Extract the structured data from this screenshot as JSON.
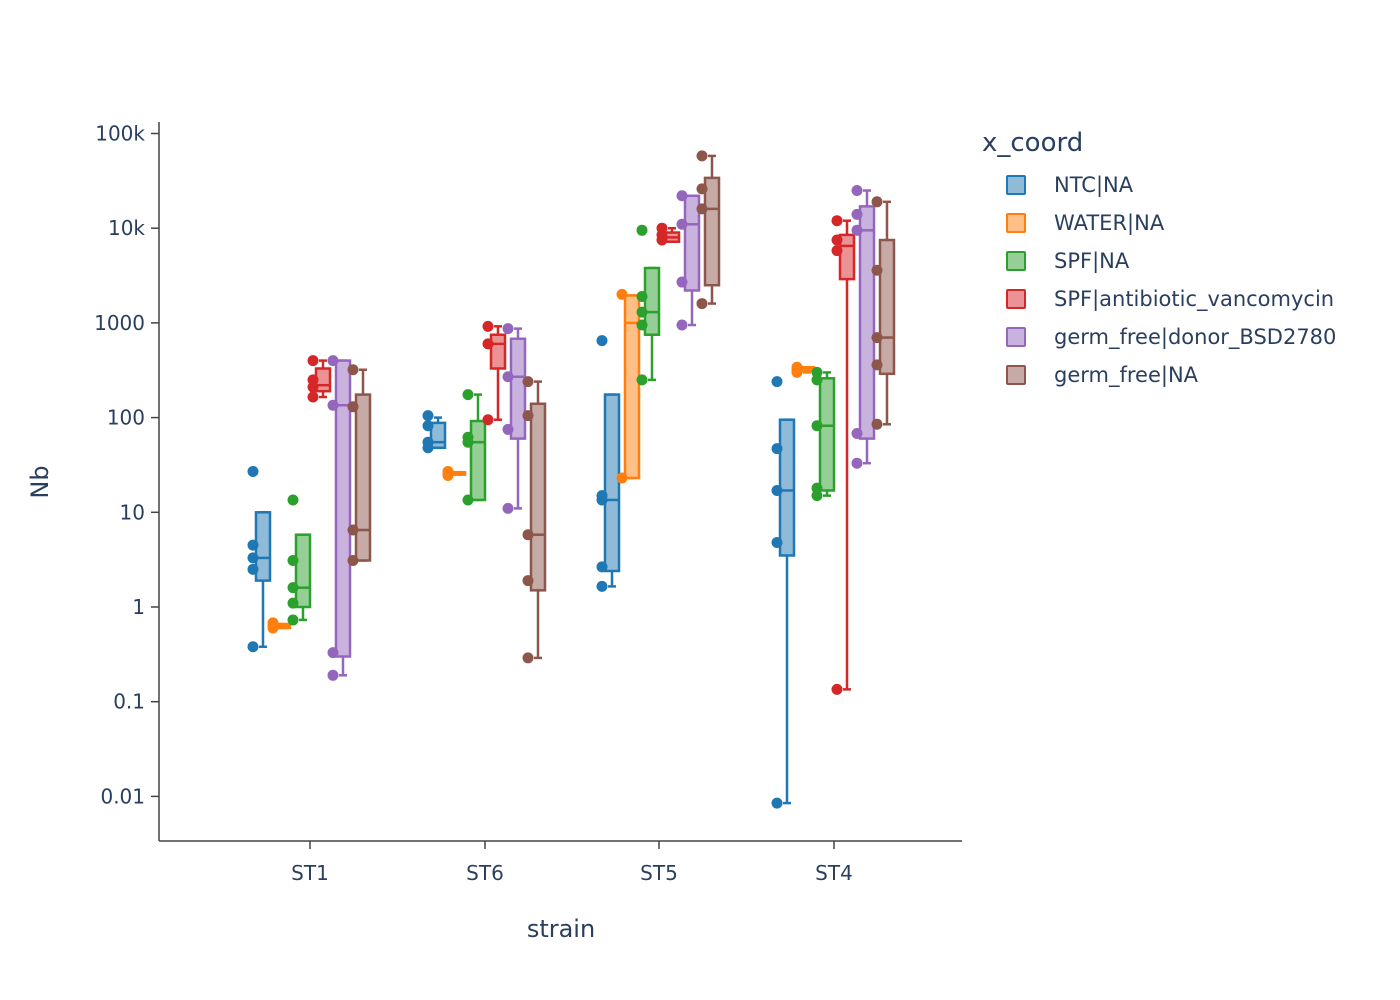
{
  "chart_data": {
    "type": "box",
    "xlabel": "strain",
    "ylabel": "Nb",
    "yscale": "log",
    "ylim": [
      0.0045,
      140000
    ],
    "y_ticks": [
      {
        "value": 0.01,
        "label": "0.01"
      },
      {
        "value": 0.1,
        "label": "0.1"
      },
      {
        "value": 1,
        "label": "1"
      },
      {
        "value": 10,
        "label": "10"
      },
      {
        "value": 100,
        "label": "100"
      },
      {
        "value": 1000,
        "label": "1000"
      },
      {
        "value": 10000,
        "label": "10k"
      },
      {
        "value": 100000,
        "label": "100k"
      }
    ],
    "categories": [
      "ST1",
      "ST6",
      "ST5",
      "ST4"
    ],
    "legend_title": "x_coord",
    "legend_position": "right",
    "series": [
      {
        "name": "NTC|NA",
        "color": "#1f77b4",
        "fill": "#8fbbd9",
        "boxes": [
          {
            "category": "ST1",
            "min": 0.38,
            "q1": 1.9,
            "median": 3.3,
            "q3": 10.0,
            "max": 10.0,
            "points": [
              0.38,
              2.5,
              3.3,
              4.5,
              27
            ]
          },
          {
            "category": "ST6",
            "min": 48,
            "q1": 48,
            "median": 55,
            "q3": 88,
            "max": 100,
            "points": [
              48,
              55,
              82,
              105
            ]
          },
          {
            "category": "ST5",
            "min": 1.65,
            "q1": 2.4,
            "median": 13.5,
            "q3": 175,
            "max": 175,
            "points": [
              1.65,
              2.65,
              13.5,
              15,
              650
            ]
          },
          {
            "category": "ST4",
            "min": 0.0085,
            "q1": 3.5,
            "median": 17,
            "q3": 95,
            "max": 95,
            "points": [
              0.0085,
              4.8,
              17,
              47,
              240
            ]
          }
        ]
      },
      {
        "name": "WATER|NA",
        "color": "#ff7f0e",
        "fill": "#ffbf86",
        "boxes": [
          {
            "category": "ST1",
            "min": 0.6,
            "q1": 0.6,
            "median": 0.63,
            "q3": 0.66,
            "max": 0.66,
            "points": [
              0.6,
              0.63,
              0.68
            ]
          },
          {
            "category": "ST6",
            "min": 25,
            "q1": 25,
            "median": 26,
            "q3": 26.5,
            "max": 26.5,
            "points": [
              24.5,
              26,
              27
            ]
          },
          {
            "category": "ST5",
            "min": 23,
            "q1": 23,
            "median": 1000,
            "q3": 1950,
            "max": 1950,
            "points": [
              23,
              2000
            ]
          },
          {
            "category": "ST4",
            "min": 300,
            "q1": 310,
            "median": 330,
            "q3": 340,
            "max": 340,
            "points": [
              300,
              320,
              340
            ]
          }
        ]
      },
      {
        "name": "SPF|NA",
        "color": "#2ca02c",
        "fill": "#95cf95",
        "boxes": [
          {
            "category": "ST1",
            "min": 0.73,
            "q1": 1.0,
            "median": 1.6,
            "q3": 5.8,
            "max": 5.8,
            "points": [
              0.73,
              1.1,
              1.6,
              3.1,
              13.5
            ]
          },
          {
            "category": "ST6",
            "min": 13.5,
            "q1": 13.5,
            "median": 55,
            "q3": 92,
            "max": 175,
            "points": [
              13.5,
              55,
              62,
              175
            ]
          },
          {
            "category": "ST5",
            "min": 250,
            "q1": 750,
            "median": 1300,
            "q3": 3800,
            "max": 3800,
            "points": [
              250,
              950,
              1300,
              1900,
              9500
            ]
          },
          {
            "category": "ST4",
            "min": 15,
            "q1": 17,
            "median": 82,
            "q3": 260,
            "max": 300,
            "points": [
              15,
              18,
              82,
              250,
              300
            ]
          }
        ]
      },
      {
        "name": "SPF|antibiotic_vancomycin",
        "color": "#d62728",
        "fill": "#eb9394",
        "boxes": [
          {
            "category": "ST1",
            "min": 165,
            "q1": 190,
            "median": 220,
            "q3": 330,
            "max": 400,
            "points": [
              165,
              210,
              250,
              400
            ]
          },
          {
            "category": "ST6",
            "min": 95,
            "q1": 330,
            "median": 600,
            "q3": 750,
            "max": 920,
            "points": [
              95,
              600,
              920
            ]
          },
          {
            "category": "ST5",
            "min": 7200,
            "q1": 7200,
            "median": 8000,
            "q3": 9000,
            "max": 10000,
            "points": [
              7500,
              8500,
              10000
            ]
          },
          {
            "category": "ST4",
            "min": 0.135,
            "q1": 2900,
            "median": 6500,
            "q3": 8500,
            "max": 12000,
            "points": [
              0.135,
              5800,
              7500,
              12000
            ]
          }
        ]
      },
      {
        "name": "germ_free|donor_BSD2780",
        "color": "#9467bd",
        "fill": "#c9b3de",
        "boxes": [
          {
            "category": "ST1",
            "min": 0.19,
            "q1": 0.3,
            "median": 135,
            "q3": 400,
            "max": 400,
            "points": [
              0.19,
              0.33,
              135,
              400
            ]
          },
          {
            "category": "ST6",
            "min": 11,
            "q1": 60,
            "median": 270,
            "q3": 680,
            "max": 870,
            "points": [
              11,
              75,
              270,
              870
            ]
          },
          {
            "category": "ST5",
            "min": 950,
            "q1": 2200,
            "median": 11000,
            "q3": 22000,
            "max": 22000,
            "points": [
              950,
              2700,
              11000,
              22000
            ]
          },
          {
            "category": "ST4",
            "min": 33,
            "q1": 60,
            "median": 9500,
            "q3": 17000,
            "max": 25000,
            "points": [
              33,
              68,
              9500,
              14000,
              25000
            ]
          }
        ]
      },
      {
        "name": "germ_free|NA",
        "color": "#8c564b",
        "fill": "#c5aaa5",
        "boxes": [
          {
            "category": "ST1",
            "min": 3.1,
            "q1": 3.1,
            "median": 6.5,
            "q3": 175,
            "max": 320,
            "points": [
              3.1,
              6.5,
              130,
              320
            ]
          },
          {
            "category": "ST6",
            "min": 0.29,
            "q1": 1.5,
            "median": 5.8,
            "q3": 140,
            "max": 240,
            "points": [
              0.29,
              1.9,
              5.8,
              105,
              240
            ]
          },
          {
            "category": "ST5",
            "min": 1600,
            "q1": 2500,
            "median": 16000,
            "q3": 34000,
            "max": 58000,
            "points": [
              1600,
              16000,
              26000,
              58000
            ]
          },
          {
            "category": "ST4",
            "min": 85,
            "q1": 290,
            "median": 700,
            "q3": 7500,
            "max": 19000,
            "points": [
              85,
              360,
              700,
              3600,
              19000
            ]
          }
        ]
      }
    ]
  }
}
